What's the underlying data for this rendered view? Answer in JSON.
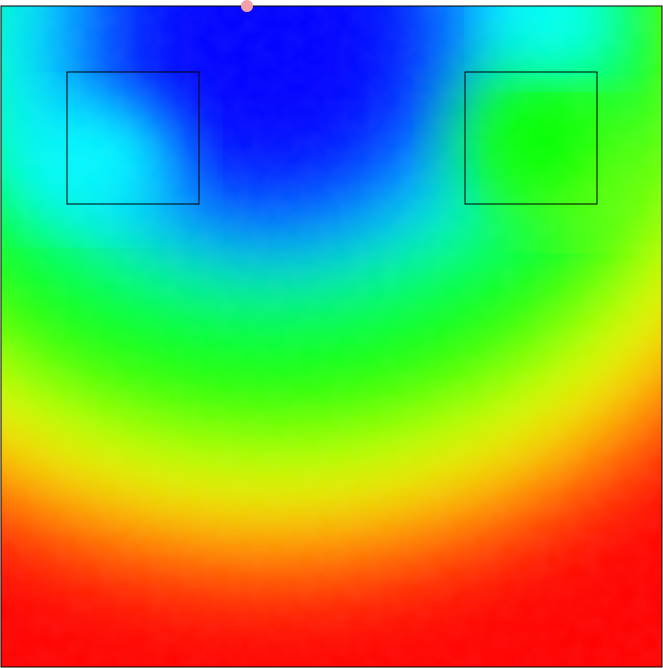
{
  "heatmap": {
    "palette": [
      "#0000ff",
      "#00ffff",
      "#00ff00",
      "#ffff00",
      "#ff0000"
    ],
    "frame_color": "#000000",
    "marker_color": "#f4a0a8",
    "background_color": "#ffffff"
  },
  "marker": {
    "shape": "circle"
  },
  "regions": [
    {
      "name": "left-box"
    },
    {
      "name": "right-box"
    }
  ]
}
